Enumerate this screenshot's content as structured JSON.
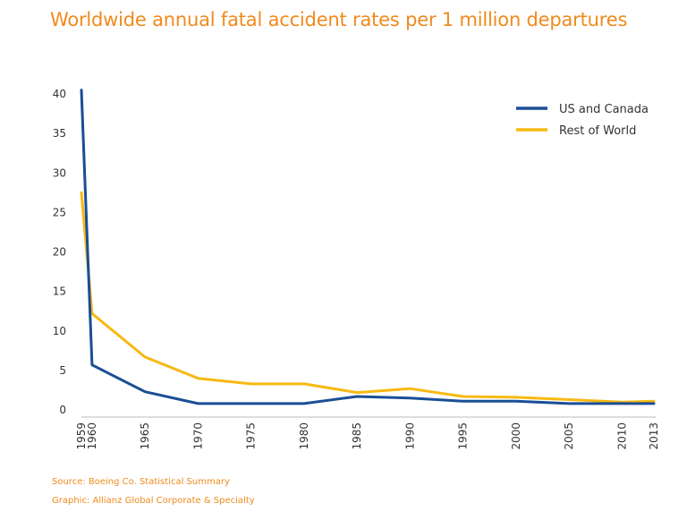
{
  "header": {
    "title": "Worldwide annual fatal accident rates per 1 million departures"
  },
  "footer": {
    "source": "Source: Boeing Co. Statistical Summary",
    "graphic": "Graphic: Allianz Global Corporate & Specialty"
  },
  "chart_data": {
    "type": "line",
    "title": "Worldwide annual fatal accident rates per 1 million departures",
    "xlabel": "",
    "ylabel": "",
    "ylim": [
      0,
      40
    ],
    "yticks": [
      0,
      5,
      10,
      15,
      20,
      25,
      30,
      35,
      40
    ],
    "xticks": [
      1959,
      1960,
      1965,
      1970,
      1975,
      1980,
      1985,
      1990,
      1995,
      2000,
      2005,
      2010,
      2013
    ],
    "xlim": [
      1959,
      2013
    ],
    "grid": false,
    "legend": "top-right",
    "series": [
      {
        "name": "US and Canada",
        "color": "#1a4e96",
        "x": [
          1959,
          1960,
          1965,
          1970,
          1975,
          1980,
          1985,
          1990,
          1995,
          2000,
          2005,
          2010,
          2013
        ],
        "y": [
          40.5,
          5.7,
          2.3,
          0.8,
          0.8,
          0.8,
          1.7,
          1.5,
          1.1,
          1.1,
          0.8,
          0.8,
          0.8
        ]
      },
      {
        "name": "Rest of World",
        "color": "#f7b913",
        "x": [
          1959,
          1960,
          1965,
          1970,
          1975,
          1980,
          1985,
          1990,
          1995,
          2000,
          2005,
          2010,
          2013
        ],
        "y": [
          27.5,
          12.2,
          6.7,
          4.0,
          3.3,
          3.3,
          2.2,
          2.7,
          1.7,
          1.6,
          1.3,
          1.0,
          1.1
        ]
      }
    ]
  }
}
